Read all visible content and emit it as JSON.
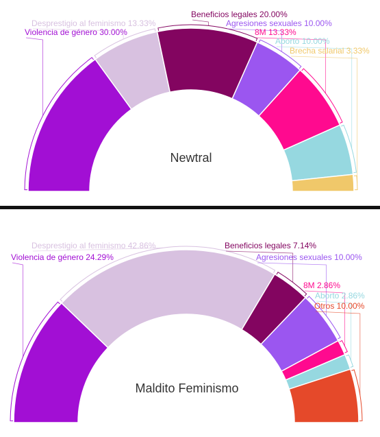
{
  "chart_data": [
    {
      "type": "pie",
      "variant": "semicircle-donut",
      "title": "Newtral",
      "series": [
        {
          "name": "Violencia de género",
          "value": 30.0,
          "label": "Violencia de género 30.00%",
          "color": "#a20fd4"
        },
        {
          "name": "Desprestigio al feminismo",
          "value": 13.33,
          "label": "Desprestigio al feminismo 13.33%",
          "color": "#d8c1e0"
        },
        {
          "name": "Beneficios legales",
          "value": 20.0,
          "label": "Beneficios legales 20.00%",
          "color": "#830560"
        },
        {
          "name": "Agresiones sexuales",
          "value": 10.0,
          "label": "Agresiones sexuales 10.00%",
          "color": "#9b56f0"
        },
        {
          "name": "8M",
          "value": 13.33,
          "label": "8M 13.33%",
          "color": "#ff0a8f"
        },
        {
          "name": "Aborto",
          "value": 10.0,
          "label": "Aborto 10.00%",
          "color": "#96d8e0"
        },
        {
          "name": "Brecha salarial",
          "value": 3.33,
          "label": "Brecha salarial 3.33%",
          "color": "#f0c86a"
        }
      ]
    },
    {
      "type": "pie",
      "variant": "semicircle-donut",
      "title": "Maldito Feminismo",
      "series": [
        {
          "name": "Violencia de género",
          "value": 24.29,
          "label": "Violencia de género 24.29%",
          "color": "#a20fd4"
        },
        {
          "name": "Desprestigio al feminismo",
          "value": 42.86,
          "label": "Desprestigio al feminismo 42.86%",
          "color": "#d8c1e0"
        },
        {
          "name": "Beneficios legales",
          "value": 7.14,
          "label": "Beneficios legales 7.14%",
          "color": "#830560"
        },
        {
          "name": "Agresiones sexuales",
          "value": 10.0,
          "label": "Agresiones sexuales 10.00%",
          "color": "#9b56f0"
        },
        {
          "name": "8M",
          "value": 2.86,
          "label": "8M 2.86%",
          "color": "#ff0a8f"
        },
        {
          "name": "Aborto",
          "value": 2.86,
          "label": "Aborto 2.86%",
          "color": "#96d8e0"
        },
        {
          "name": "Otros",
          "value": 10.0,
          "label": "Otros 10.00%",
          "color": "#e5492a"
        }
      ]
    }
  ]
}
